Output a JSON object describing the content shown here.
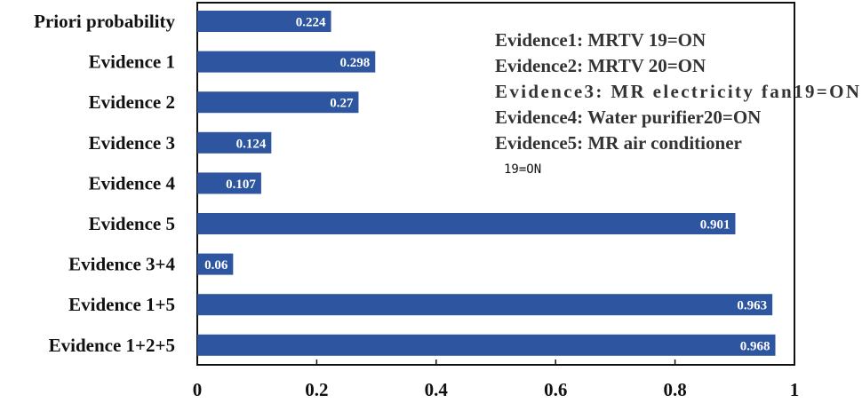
{
  "chart_data": {
    "type": "bar",
    "orientation": "horizontal",
    "categories": [
      "Priori probability",
      "Evidence 1",
      "Evidence 2",
      "Evidence 3",
      "Evidence 4",
      "Evidence 5",
      "Evidence 3+4",
      "Evidence 1+5",
      "Evidence 1+2+5"
    ],
    "values": [
      0.224,
      0.298,
      0.27,
      0.124,
      0.107,
      0.901,
      0.06,
      0.963,
      0.968
    ],
    "value_labels": [
      "0.224",
      "0.298",
      "0.27",
      "0.124",
      "0.107",
      "0.901",
      "0.06",
      "0.963",
      "0.968"
    ],
    "xlim": [
      0,
      1
    ],
    "x_ticks": [
      "0",
      "0.2",
      "0.4",
      "0.6",
      "0.8",
      "1"
    ],
    "title": "",
    "xlabel": "",
    "ylabel": "",
    "grid": false,
    "bar_color": "#2e55a0",
    "legend_placement": "top-right",
    "annotation_lines": [
      "Evidence1: MRTV 19=ON",
      "Evidence2: MRTV 20=ON",
      "Evidence3: MR electricity fan19=ON",
      "Evidence4: Water purifier20=ON",
      "Evidence5: MR air conditioner"
    ],
    "annotation_tail": "19=ON"
  }
}
